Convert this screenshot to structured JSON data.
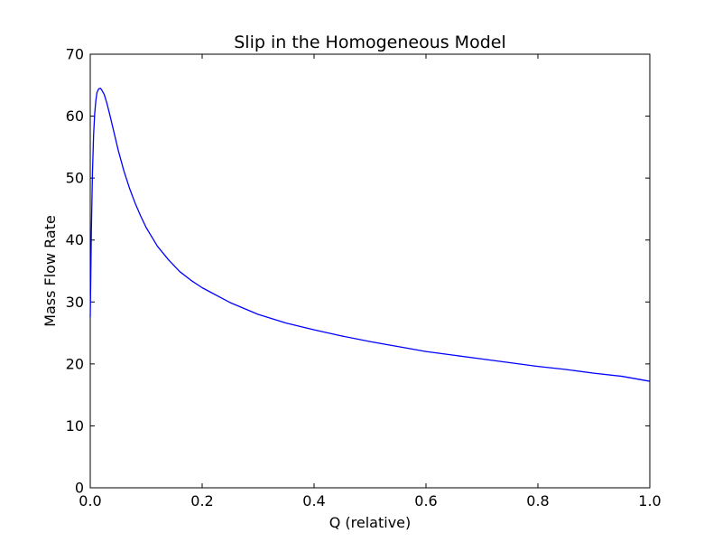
{
  "chart_data": {
    "type": "line",
    "title": "Slip in the Homogeneous Model",
    "xlabel": "Q (relative)",
    "ylabel": "Mass Flow Rate",
    "xlim": [
      0.0,
      1.0
    ],
    "ylim": [
      0,
      70
    ],
    "xticks": [
      "0.0",
      "0.2",
      "0.4",
      "0.6",
      "0.8",
      "1.0"
    ],
    "yticks": [
      "0",
      "10",
      "20",
      "30",
      "40",
      "50",
      "60",
      "70"
    ],
    "grid": false,
    "legend": "none",
    "series": [
      {
        "color": "#0000ff",
        "x": [
          0.0,
          0.002,
          0.004,
          0.006,
          0.008,
          0.01,
          0.012,
          0.015,
          0.018,
          0.02,
          0.025,
          0.03,
          0.035,
          0.04,
          0.05,
          0.06,
          0.07,
          0.08,
          0.09,
          0.1,
          0.12,
          0.14,
          0.16,
          0.18,
          0.2,
          0.25,
          0.3,
          0.35,
          0.4,
          0.45,
          0.5,
          0.55,
          0.6,
          0.65,
          0.7,
          0.75,
          0.8,
          0.85,
          0.9,
          0.95,
          1.0
        ],
        "y": [
          27.5,
          41.5,
          51.0,
          57.0,
          60.5,
          62.5,
          63.8,
          64.4,
          64.5,
          64.3,
          63.5,
          62.0,
          60.2,
          58.3,
          54.5,
          51.2,
          48.4,
          46.0,
          43.9,
          42.0,
          39.0,
          36.8,
          34.9,
          33.5,
          32.3,
          29.9,
          28.0,
          26.6,
          25.5,
          24.5,
          23.6,
          22.8,
          22.0,
          21.4,
          20.8,
          20.2,
          19.6,
          19.1,
          18.5,
          18.0,
          17.2
        ]
      }
    ]
  }
}
